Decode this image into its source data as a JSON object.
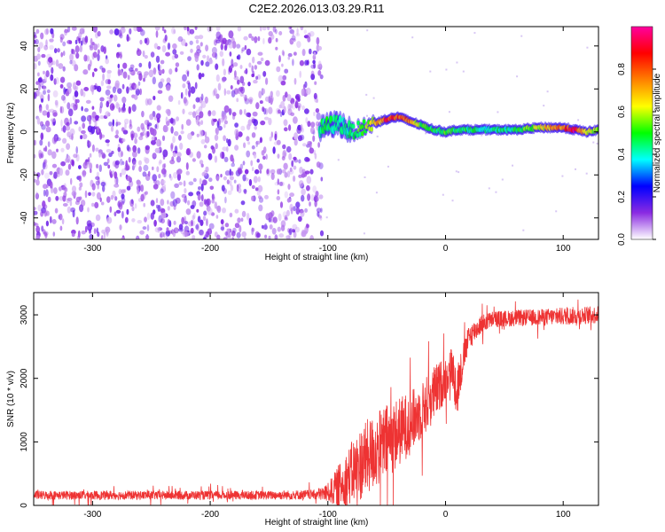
{
  "figure": {
    "title": "C2E2.2026.013.03.29.R11"
  },
  "chart_data": [
    {
      "type": "heatmap",
      "id": "spectrogram",
      "xlabel": "Height of straight line (km)",
      "ylabel": "Frequency (Hz)",
      "xlim": [
        -350,
        130
      ],
      "ylim": [
        -50,
        49
      ],
      "xticks": [
        -300,
        -200,
        -100,
        0,
        100
      ],
      "yticks": [
        -40,
        -20,
        0,
        20,
        40
      ],
      "noise_region": {
        "x_range": [
          -350,
          -105
        ],
        "level": 0.12
      },
      "ridge": {
        "x": [
          -107,
          -100,
          -90,
          -80,
          -70,
          -60,
          -50,
          -40,
          -30,
          -20,
          -10,
          0,
          10,
          20,
          40,
          60,
          80,
          100,
          110,
          120,
          130
        ],
        "frequency": [
          1,
          3,
          4,
          0,
          2,
          4,
          6,
          7,
          5,
          3,
          1,
          0,
          1,
          1,
          1,
          1,
          2,
          2,
          1,
          0,
          1
        ],
        "amplitude": [
          0.45,
          0.5,
          0.45,
          0.5,
          0.55,
          0.7,
          0.9,
          0.85,
          0.8,
          0.55,
          0.5,
          0.55,
          0.5,
          0.5,
          0.45,
          0.5,
          0.65,
          0.85,
          0.95,
          0.7,
          0.6
        ]
      },
      "colorbar": {
        "label": "Normalized spectral amplitude",
        "range": [
          0,
          1
        ],
        "ticks": [
          "0.0",
          "0.2",
          "0.4",
          "0.6",
          "0.8"
        ],
        "colors": [
          "#ffffff",
          "#8a2be2",
          "#0000ff",
          "#00ffff",
          "#00ff00",
          "#ffff00",
          "#ff8000",
          "#ff0000",
          "#ff00a0"
        ]
      }
    },
    {
      "type": "line",
      "id": "snr",
      "xlabel": "Height of straight line (km)",
      "ylabel": "SNR (10 * v/v)",
      "xlim": [
        -350,
        130
      ],
      "ylim": [
        0,
        3350
      ],
      "xticks": [
        -300,
        -200,
        -100,
        0,
        100
      ],
      "yticks": [
        0,
        1000,
        2000,
        3000
      ],
      "series": [
        {
          "color": "#ee3333",
          "x": [
            -350,
            -300,
            -250,
            -200,
            -150,
            -110,
            -100,
            -90,
            -80,
            -70,
            -60,
            -50,
            -40,
            -30,
            -20,
            -10,
            0,
            5,
            10,
            15,
            20,
            30,
            40,
            60,
            80,
            100,
            130
          ],
          "mean": [
            160,
            160,
            160,
            160,
            160,
            170,
            200,
            300,
            500,
            700,
            850,
            1000,
            1150,
            1300,
            1500,
            1750,
            2000,
            2200,
            1800,
            2300,
            2650,
            2850,
            2930,
            2950,
            2960,
            2980,
            3000
          ],
          "spread": [
            70,
            70,
            70,
            70,
            70,
            80,
            150,
            350,
            500,
            600,
            600,
            600,
            550,
            500,
            450,
            450,
            350,
            300,
            450,
            250,
            200,
            150,
            130,
            130,
            130,
            140,
            140
          ]
        }
      ]
    }
  ]
}
